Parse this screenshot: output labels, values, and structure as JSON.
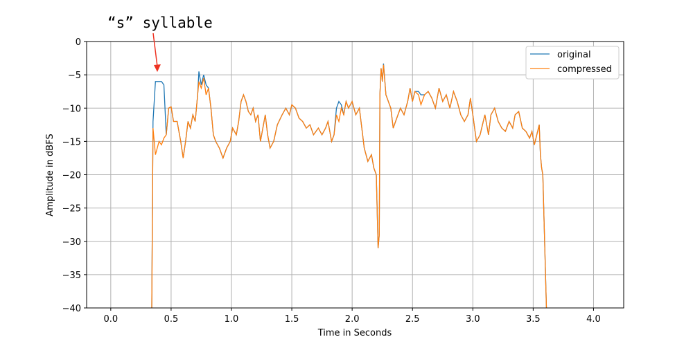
{
  "chart_data": {
    "type": "line",
    "annotation": "“s” syllable",
    "x_label": "Time in Seconds",
    "y_label": "Amplitude in dBFS",
    "x": [
      0.34,
      0.35,
      0.37,
      0.4,
      0.42,
      0.44,
      0.46,
      0.48,
      0.5,
      0.52,
      0.55,
      0.58,
      0.6,
      0.62,
      0.64,
      0.66,
      0.68,
      0.7,
      0.72,
      0.73,
      0.75,
      0.77,
      0.79,
      0.81,
      0.83,
      0.85,
      0.87,
      0.9,
      0.93,
      0.96,
      0.99,
      1.01,
      1.04,
      1.06,
      1.08,
      1.1,
      1.12,
      1.14,
      1.16,
      1.18,
      1.2,
      1.22,
      1.24,
      1.26,
      1.28,
      1.3,
      1.32,
      1.35,
      1.38,
      1.42,
      1.45,
      1.48,
      1.5,
      1.53,
      1.56,
      1.59,
      1.62,
      1.65,
      1.68,
      1.72,
      1.75,
      1.78,
      1.8,
      1.83,
      1.85,
      1.87,
      1.89,
      1.91,
      1.93,
      1.95,
      1.97,
      2.0,
      2.03,
      2.06,
      2.08,
      2.1,
      2.13,
      2.16,
      2.18,
      2.2,
      2.215,
      2.225,
      2.23,
      2.24,
      2.25,
      2.26,
      2.28,
      2.3,
      2.32,
      2.34,
      2.36,
      2.38,
      2.4,
      2.43,
      2.46,
      2.48,
      2.5,
      2.52,
      2.55,
      2.57,
      2.6,
      2.63,
      2.66,
      2.69,
      2.72,
      2.75,
      2.78,
      2.81,
      2.84,
      2.87,
      2.9,
      2.93,
      2.96,
      2.98,
      3.0,
      3.03,
      3.06,
      3.08,
      3.1,
      3.13,
      3.15,
      3.18,
      3.21,
      3.24,
      3.27,
      3.3,
      3.33,
      3.35,
      3.38,
      3.41,
      3.44,
      3.47,
      3.49,
      3.51,
      3.53,
      3.55,
      3.56,
      3.57,
      3.58,
      3.59,
      3.61
    ],
    "series": [
      {
        "name": "original",
        "color": "#1f77b4",
        "values": [
          -40,
          -12,
          -6,
          -6,
          -6,
          -6.5,
          -14,
          -10,
          -9.8,
          -12,
          -12,
          -15,
          -17.5,
          -15,
          -12,
          -13,
          -11,
          -12,
          -8,
          -4.5,
          -6.5,
          -5,
          -6.5,
          -7,
          -10,
          -14,
          -15,
          -16,
          -17.5,
          -16,
          -15,
          -13,
          -14,
          -12,
          -9,
          -8,
          -9,
          -10.5,
          -11,
          -10,
          -12,
          -11,
          -15,
          -13,
          -11,
          -14,
          -16,
          -15,
          -12.5,
          -11,
          -10,
          -11,
          -9.5,
          -10,
          -11.5,
          -12,
          -13,
          -12.5,
          -14,
          -13,
          -14,
          -13,
          -12,
          -15,
          -14,
          -10,
          -9,
          -9.5,
          -11,
          -9,
          -10,
          -9,
          -11,
          -10,
          -13,
          -16,
          -18,
          -17,
          -19,
          -20,
          -31,
          -29,
          -8,
          -4,
          -6,
          -3.3,
          -8,
          -9,
          -10,
          -13,
          -12,
          -11,
          -10,
          -11,
          -9,
          -7,
          -9,
          -7.5,
          -7.5,
          -8,
          -8,
          -7.5,
          -8.5,
          -10,
          -7,
          -9,
          -8,
          -10,
          -7.5,
          -9,
          -11,
          -12,
          -11,
          -8.5,
          -11,
          -15,
          -14,
          -12.5,
          -11,
          -14,
          -11,
          -10,
          -12,
          -13,
          -13.5,
          -12,
          -13,
          -11,
          -10.5,
          -13,
          -13.5,
          -14.5,
          -13.5,
          -15.5,
          -14,
          -12.5,
          -17,
          -19,
          -20,
          -27,
          -40
        ]
      },
      {
        "name": "compressed",
        "color": "#ff7f0e",
        "values": [
          -40,
          -13,
          -17,
          -15,
          -15.5,
          -14.5,
          -14,
          -10,
          -9.8,
          -12,
          -12,
          -15,
          -17.5,
          -15,
          -12,
          -13,
          -11,
          -12,
          -8,
          -6,
          -7,
          -5.5,
          -8,
          -7,
          -10,
          -14,
          -15,
          -16,
          -17.5,
          -16,
          -15,
          -13,
          -14,
          -12,
          -9,
          -8,
          -9,
          -10.5,
          -11,
          -10,
          -12,
          -11,
          -15,
          -13,
          -11,
          -14,
          -16,
          -15,
          -12.5,
          -11,
          -10,
          -11,
          -9.5,
          -10,
          -11.5,
          -12,
          -13,
          -12.5,
          -14,
          -13,
          -14,
          -13,
          -12,
          -15,
          -14,
          -11,
          -12,
          -10,
          -11,
          -9,
          -10,
          -9,
          -11,
          -10,
          -13,
          -16,
          -18,
          -17,
          -19,
          -20,
          -31,
          -29,
          -8,
          -4,
          -6,
          -3.5,
          -8,
          -9,
          -10,
          -13,
          -12,
          -11,
          -10,
          -11,
          -9,
          -7,
          -9,
          -7.5,
          -8,
          -9.5,
          -8,
          -7.5,
          -8.5,
          -10,
          -7,
          -9,
          -8,
          -10,
          -7.5,
          -9,
          -11,
          -12,
          -11,
          -8.5,
          -11,
          -15,
          -14,
          -12.5,
          -11,
          -14,
          -11,
          -10,
          -12,
          -13,
          -13.5,
          -12,
          -13,
          -11,
          -10.5,
          -13,
          -13.5,
          -14.5,
          -13.5,
          -15.5,
          -14,
          -12.5,
          -17,
          -19,
          -20,
          -27,
          -40
        ]
      }
    ],
    "xlim": [
      -0.2,
      4.25
    ],
    "ylim": [
      -40,
      0
    ],
    "xticks": [
      {
        "value": 0,
        "label": "0.0"
      },
      0.5,
      {
        "value": 1,
        "label": "1.0"
      },
      1.5,
      {
        "value": 2,
        "label": "2.0"
      },
      2.5,
      {
        "value": 3,
        "label": "3.0"
      },
      3.5,
      {
        "value": 4,
        "label": "4.0"
      }
    ],
    "yticks": [
      {
        "value": -40,
        "label": "−40"
      },
      {
        "value": -35,
        "label": "−35"
      },
      {
        "value": -30,
        "label": "−30"
      },
      {
        "value": -25,
        "label": "−25"
      },
      {
        "value": -20,
        "label": "−20"
      },
      {
        "value": -15,
        "label": "−15"
      },
      {
        "value": -10,
        "label": "−10"
      },
      {
        "value": -5,
        "label": "−5"
      },
      0
    ],
    "grid": true,
    "legend": "upper right"
  }
}
